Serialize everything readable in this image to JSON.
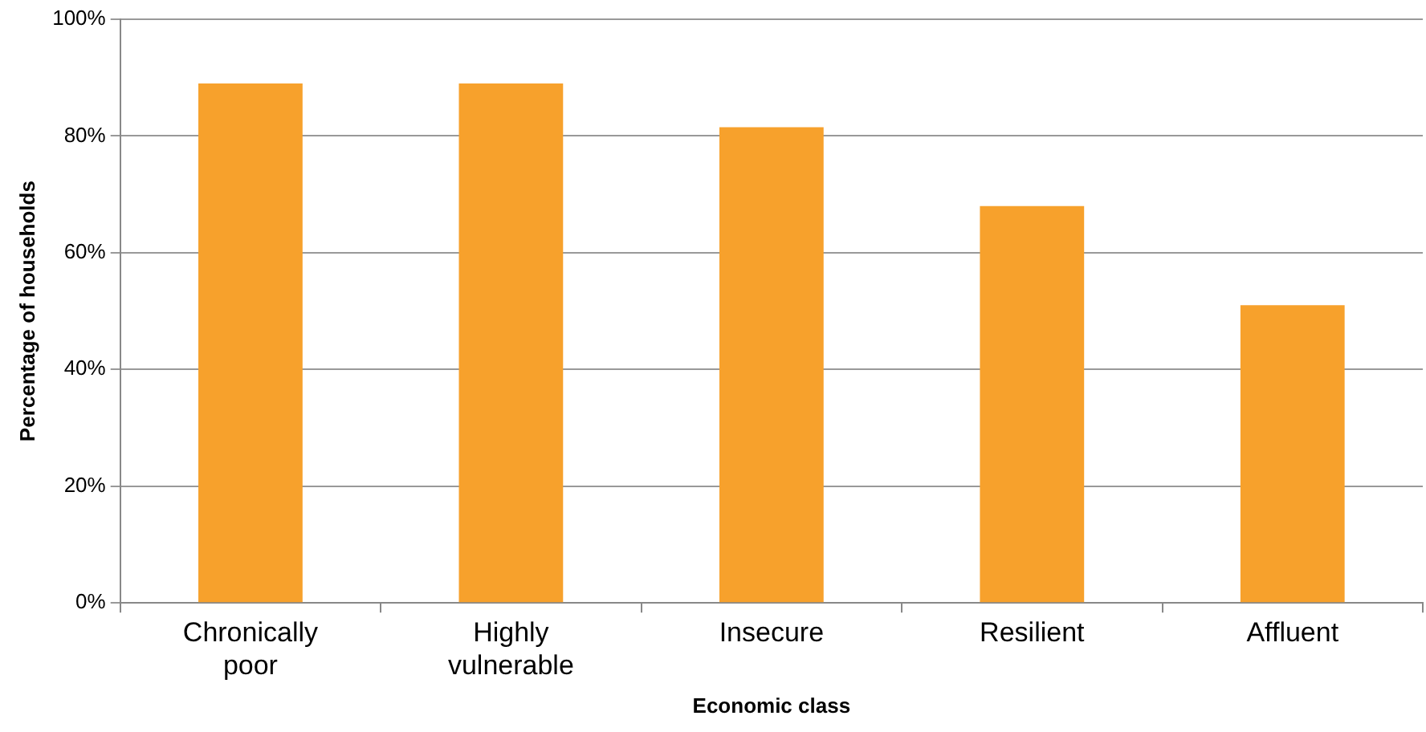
{
  "chart_data": {
    "type": "bar",
    "xlabel": "Economic class",
    "ylabel": "Percentage of households",
    "categories": [
      "Chronically poor",
      "Highly vulnerable",
      "Insecure",
      "Resilient",
      "Affluent"
    ],
    "values": [
      89,
      89,
      81.5,
      68,
      51
    ],
    "color": "#f7a12c",
    "ylim": [
      0,
      100
    ],
    "yticks": [
      {
        "value": 0,
        "label": "0%"
      },
      {
        "value": 20,
        "label": "20%"
      },
      {
        "value": 40,
        "label": "40%"
      },
      {
        "value": 60,
        "label": "60%"
      },
      {
        "value": 80,
        "label": "80%"
      },
      {
        "value": 100,
        "label": "100%"
      }
    ],
    "grid": "y"
  }
}
